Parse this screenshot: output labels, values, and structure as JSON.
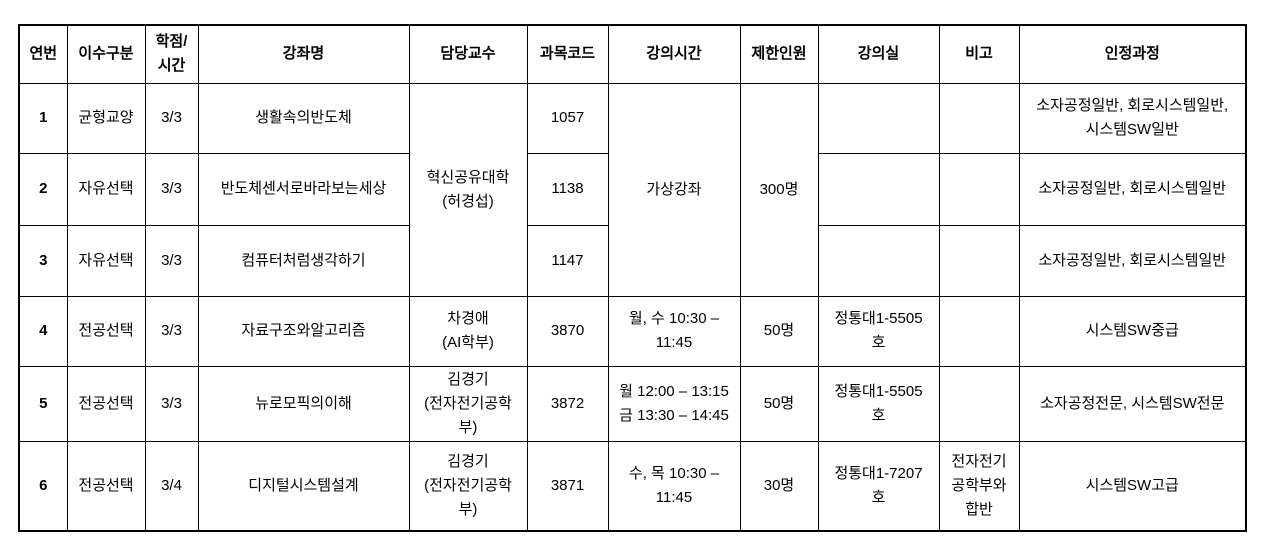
{
  "table": {
    "headers": {
      "no": "연번",
      "category": "이수구분",
      "credit": "학점/\n시간",
      "course": "강좌명",
      "professor": "담당교수",
      "code": "과목코드",
      "time": "강의시간",
      "limit": "제한인원",
      "room": "강의실",
      "note": "비고",
      "recognized": "인정과정"
    },
    "merged_rows_1_to_3": {
      "professor": "혁신공유대학\n(허경섭)",
      "time": "가상강좌",
      "limit": "300명"
    },
    "rows": [
      {
        "no": "1",
        "category": "균형교양",
        "credit": "3/3",
        "course": "생활속의반도체",
        "code": "1057",
        "room": "",
        "note": "",
        "recognized": "소자공정일반, 회로시스템일반,\n시스템SW일반"
      },
      {
        "no": "2",
        "category": "자유선택",
        "credit": "3/3",
        "course": "반도체센서로바라보는세상",
        "code": "1138",
        "room": "",
        "note": "",
        "recognized": "소자공정일반, 회로시스템일반"
      },
      {
        "no": "3",
        "category": "자유선택",
        "credit": "3/3",
        "course": "컴퓨터처럼생각하기",
        "code": "1147",
        "room": "",
        "note": "",
        "recognized": "소자공정일반, 회로시스템일반"
      },
      {
        "no": "4",
        "category": "전공선택",
        "credit": "3/3",
        "course": "자료구조와알고리즘",
        "professor": "차경애\n(AI학부)",
        "code": "3870",
        "time": "월, 수 10:30 –\n11:45",
        "limit": "50명",
        "room": "정통대1-5505\n호",
        "note": "",
        "recognized": "시스템SW중급"
      },
      {
        "no": "5",
        "category": "전공선택",
        "credit": "3/3",
        "course": "뉴로모픽의이해",
        "professor": "김경기\n(전자전기공학\n부)",
        "code": "3872",
        "time": "월 12:00 – 13:15\n금 13:30 – 14:45",
        "limit": "50명",
        "room": "정통대1-5505\n호",
        "note": "",
        "recognized": "소자공정전문, 시스템SW전문"
      },
      {
        "no": "6",
        "category": "전공선택",
        "credit": "3/4",
        "course": "디지털시스템설계",
        "professor": "김경기\n(전자전기공학\n부)",
        "code": "3871",
        "time": "수, 목 10:30 –\n11:45",
        "limit": "30명",
        "room": "정통대1-7207\n호",
        "note": "전자전기\n공학부와\n합반",
        "recognized": "시스템SW고급"
      }
    ]
  }
}
